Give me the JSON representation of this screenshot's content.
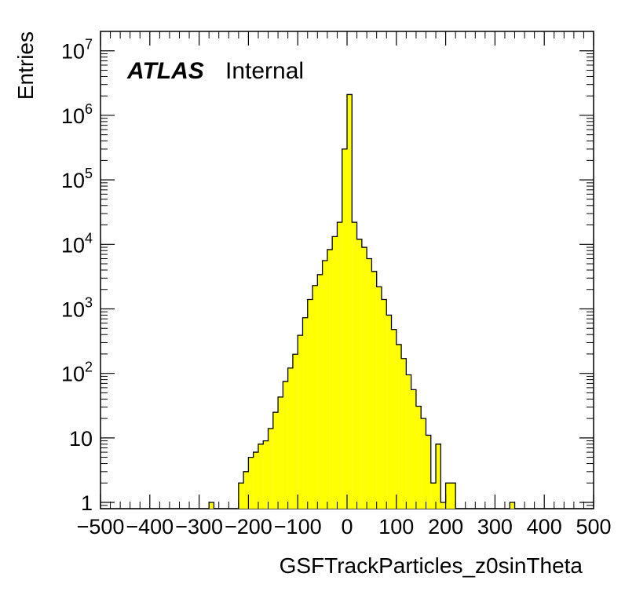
{
  "chart_data": {
    "type": "bar",
    "histogram": true,
    "xlabel": "GSFTrackParticles_z0sinTheta",
    "ylabel": "Entries",
    "annotation": {
      "experiment": "ATLAS",
      "status": "Internal"
    },
    "xlim": [
      -500,
      500
    ],
    "ylim": [
      0.8,
      20000000
    ],
    "yscale": "log",
    "grid": false,
    "legend": "none",
    "x_tick_labels": [
      "−500",
      "−400",
      "−300",
      "−200",
      "−100",
      "0",
      "100",
      "200",
      "300",
      "400",
      "500"
    ],
    "y_tick_labels": [
      {
        "base": "1",
        "exp": ""
      },
      {
        "base": "10",
        "exp": ""
      },
      {
        "base": "10",
        "exp": "2"
      },
      {
        "base": "10",
        "exp": "3"
      },
      {
        "base": "10",
        "exp": "4"
      },
      {
        "base": "10",
        "exp": "5"
      },
      {
        "base": "10",
        "exp": "6"
      },
      {
        "base": "10",
        "exp": "7"
      }
    ],
    "fill_color": "#ffff00",
    "line_color": "#000000",
    "bin_width": 10,
    "bin_edges_start": -500,
    "values": [
      0,
      0,
      0,
      0,
      0,
      0,
      0,
      0,
      0,
      0,
      0,
      0,
      0,
      0,
      0,
      0,
      0,
      0,
      0,
      0,
      0,
      0,
      1,
      0,
      0,
      0,
      0,
      0,
      2,
      3,
      5,
      6,
      8,
      9,
      14,
      25,
      43,
      75,
      121,
      198,
      390,
      730,
      1400,
      2300,
      3400,
      5600,
      8300,
      13200,
      22000,
      300000,
      2100000,
      22000,
      12000,
      9000,
      6000,
      3800,
      2200,
      1400,
      800,
      480,
      280,
      170,
      95,
      56,
      31,
      20,
      11,
      2,
      8,
      1,
      2,
      2,
      0,
      0,
      0,
      0,
      0,
      0,
      0,
      0,
      0,
      0,
      0,
      1,
      0,
      0,
      0,
      0,
      0,
      0,
      0,
      0,
      0,
      0,
      0,
      0,
      0,
      0,
      0,
      0
    ]
  }
}
